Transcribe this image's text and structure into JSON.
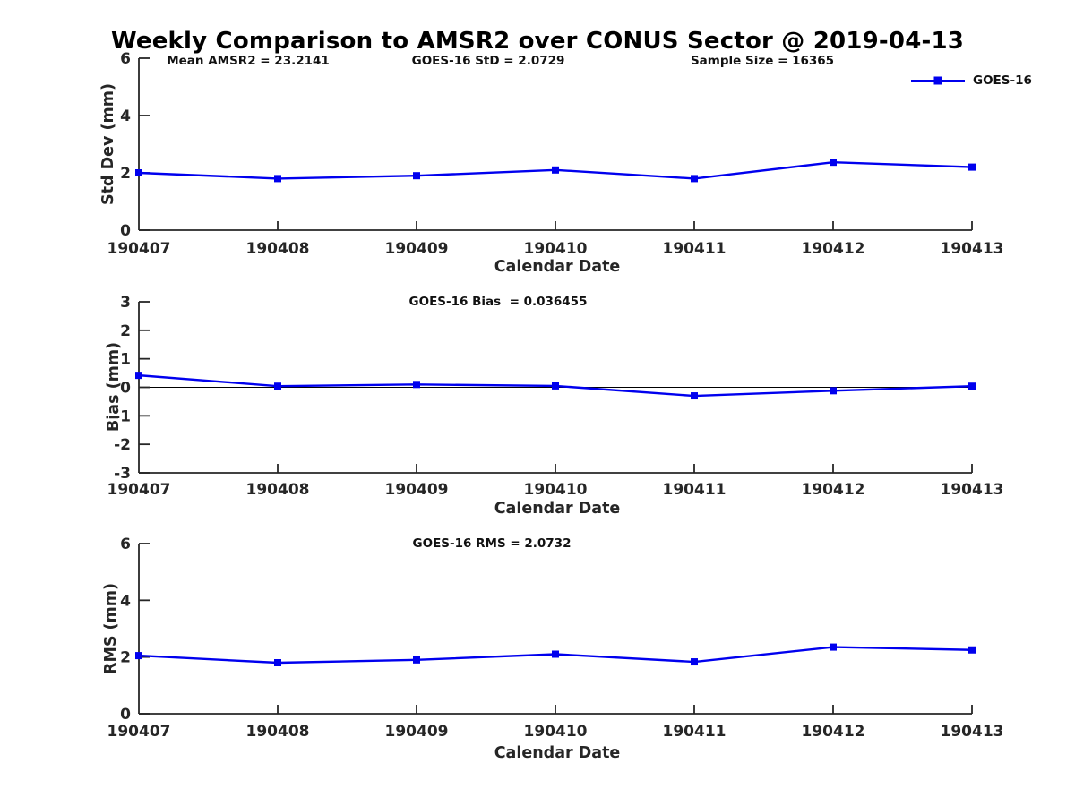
{
  "title": "Weekly Comparison to AMSR2 over CONUS Sector @ 2019-04-13",
  "colors": {
    "series": "#0000ee",
    "tick_text": "#262626",
    "axis": "#262626",
    "zero_line": "#000000",
    "title_text": "#000000"
  },
  "legend": {
    "label": "GOES-16",
    "position": "top-right"
  },
  "chart_data": [
    {
      "type": "line",
      "ylabel": "Std Dev (mm)",
      "xlabel": "Calendar Date",
      "categories": [
        "190407",
        "190408",
        "190409",
        "190410",
        "190411",
        "190412",
        "190413"
      ],
      "series": [
        {
          "name": "GOES-16",
          "values": [
            2.0,
            1.8,
            1.9,
            2.1,
            1.8,
            2.37,
            2.2
          ]
        }
      ],
      "ylim": [
        0,
        6
      ],
      "yticks": [
        0,
        2,
        4,
        6
      ],
      "grid": false,
      "zero_line": false,
      "marker": "square",
      "legend_position": "top-right",
      "annotations": [
        "Mean AMSR2 = 23.2141",
        "GOES-16 StD = 2.0729",
        "Sample Size = 16365"
      ]
    },
    {
      "type": "line",
      "ylabel": "Bias (mm)",
      "xlabel": "Calendar Date",
      "categories": [
        "190407",
        "190408",
        "190409",
        "190410",
        "190411",
        "190412",
        "190413"
      ],
      "series": [
        {
          "name": "GOES-16",
          "values": [
            0.42,
            0.04,
            0.1,
            0.05,
            -0.3,
            -0.12,
            0.04
          ]
        }
      ],
      "ylim": [
        -3,
        3
      ],
      "yticks": [
        -3,
        -2,
        -1,
        0,
        1,
        2,
        3
      ],
      "grid": false,
      "zero_line": true,
      "marker": "square",
      "annotations": [
        "GOES-16 Bias  = 0.036455"
      ]
    },
    {
      "type": "line",
      "ylabel": "RMS (mm)",
      "xlabel": "Calendar Date",
      "categories": [
        "190407",
        "190408",
        "190409",
        "190410",
        "190411",
        "190412",
        "190413"
      ],
      "series": [
        {
          "name": "GOES-16",
          "values": [
            2.05,
            1.8,
            1.9,
            2.1,
            1.83,
            2.35,
            2.25
          ]
        }
      ],
      "ylim": [
        0,
        6
      ],
      "yticks": [
        0,
        2,
        4,
        6
      ],
      "grid": false,
      "zero_line": false,
      "marker": "square",
      "annotations": [
        "GOES-16 RMS = 2.0732"
      ]
    }
  ]
}
